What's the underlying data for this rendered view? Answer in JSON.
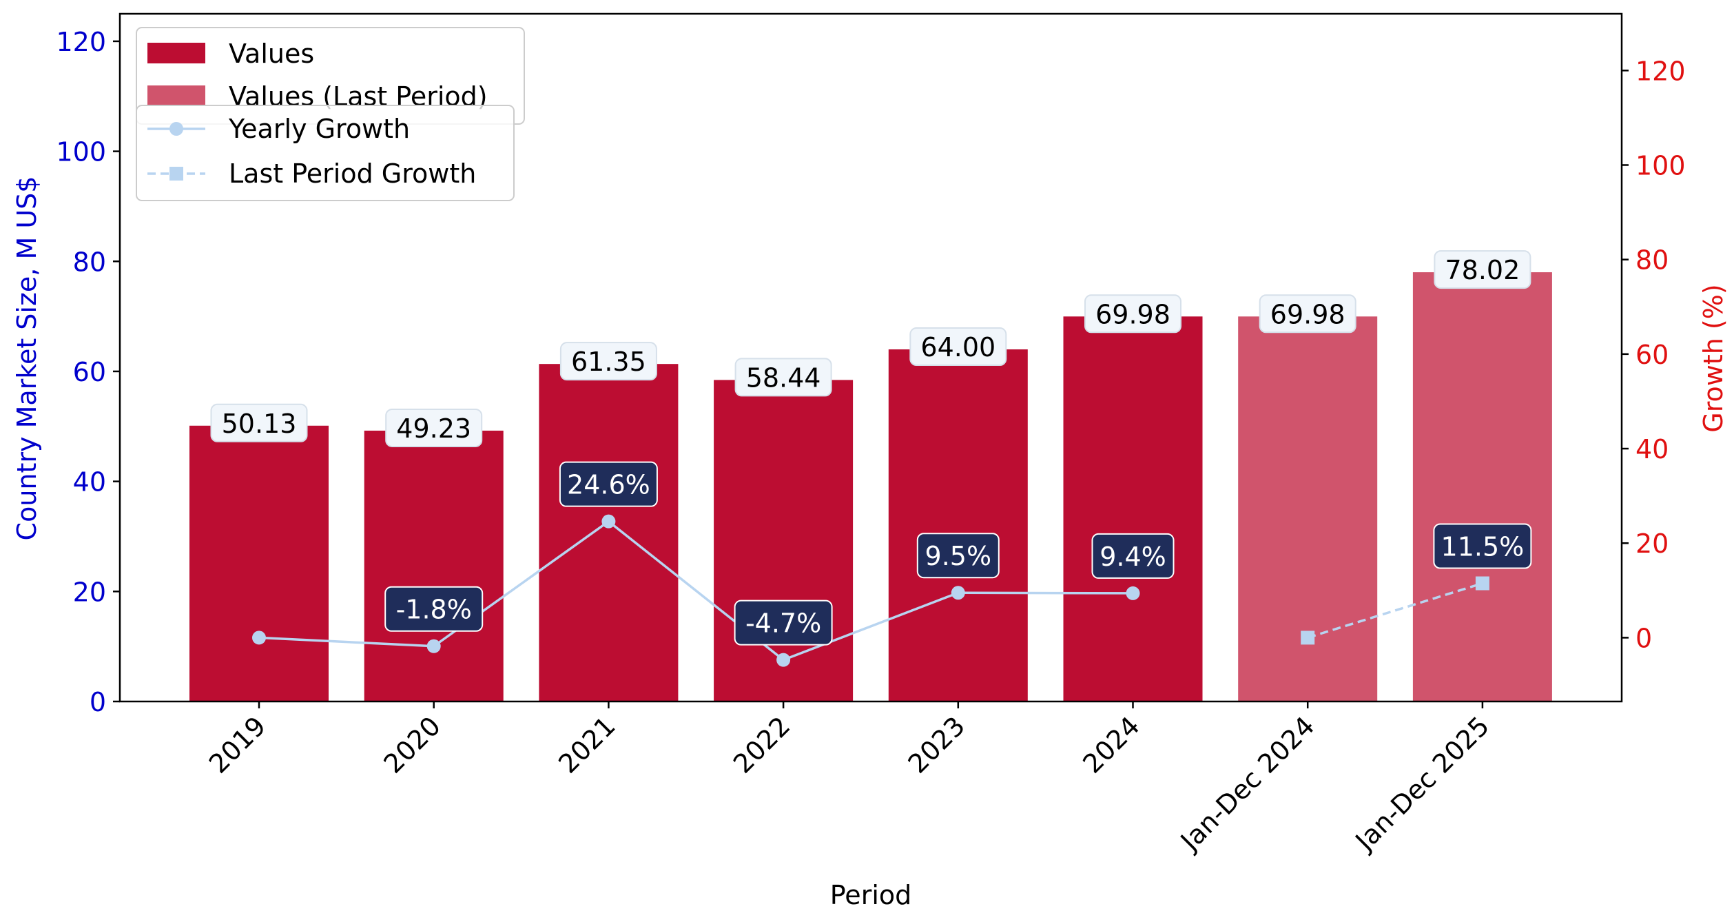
{
  "chart_data": {
    "type": "bar",
    "xlabel": "Period",
    "ylabel_left": "Country Market Size, M US$",
    "ylabel_right": "Growth (%)",
    "ylim_left": [
      0,
      125
    ],
    "ylim_right": [
      -13.5,
      132
    ],
    "yticks_left": [
      0,
      20,
      40,
      60,
      80,
      100,
      120
    ],
    "yticks_right": [
      0,
      20,
      40,
      60,
      80,
      100,
      120
    ],
    "categories": [
      "2019",
      "2020",
      "2021",
      "2022",
      "2023",
      "2024",
      "Jan-Dec 2024",
      "Jan-Dec 2025"
    ],
    "values": [
      50.13,
      49.23,
      61.35,
      58.44,
      64.0,
      69.98,
      69.98,
      78.02
    ],
    "value_labels": [
      "50.13",
      "49.23",
      "61.35",
      "58.44",
      "64.00",
      "69.98",
      "69.98",
      "78.02"
    ],
    "bar_series": [
      "Values",
      "Values",
      "Values",
      "Values",
      "Values",
      "Values",
      "Values (Last Period)",
      "Values (Last Period)"
    ],
    "yearly_growth": {
      "name": "Yearly Growth",
      "x_index": [
        0,
        1,
        2,
        3,
        4,
        5
      ],
      "values": [
        0,
        -1.8,
        24.6,
        -4.7,
        9.5,
        9.4
      ],
      "labels": [
        null,
        "-1.8%",
        "24.6%",
        "-4.7%",
        "9.5%",
        "9.4%"
      ]
    },
    "last_period_growth": {
      "name": "Last Period Growth",
      "x_index": [
        6,
        7
      ],
      "values": [
        0,
        11.5
      ],
      "labels": [
        null,
        "11.5%"
      ]
    },
    "legend_bars": [
      "Values",
      "Values (Last Period)"
    ],
    "legend_lines": [
      "Yearly Growth",
      "Last Period Growth"
    ],
    "legend_placement": "top-left",
    "grid": false,
    "colors": {
      "bar": "#bc0d32",
      "bar_last": "#d0546c",
      "line": "#b8d4f0",
      "left_axis": "#0000cc",
      "right_axis": "#e01010",
      "value_box": "#f1f6fb",
      "growth_box": "#1f2d5a"
    }
  }
}
